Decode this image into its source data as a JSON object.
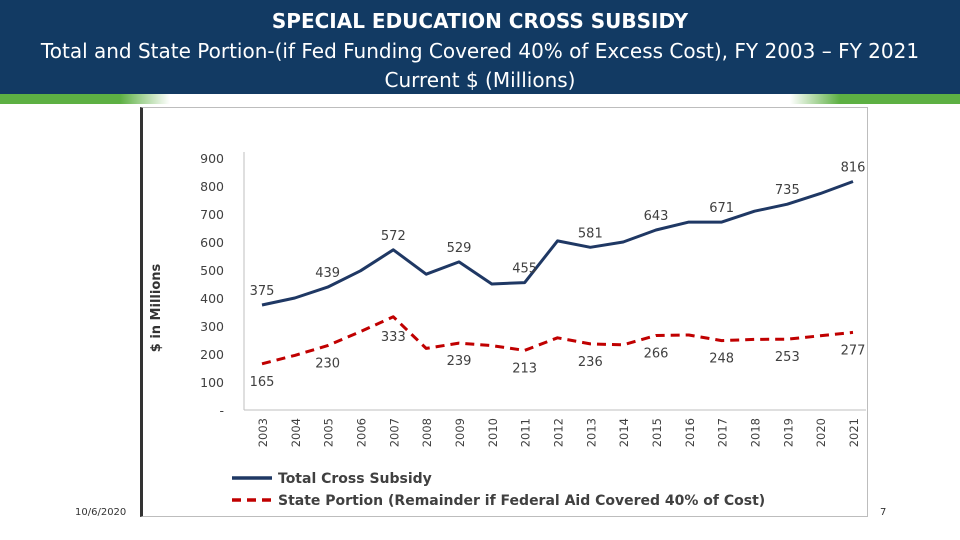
{
  "header": {
    "title": "SPECIAL EDUCATION CROSS SUBSIDY",
    "subtitle": "Total and State Portion-(if Fed Funding Covered 40% of Excess Cost),  FY 2003 – FY 2021",
    "subtitle2": "Current $ (Millions)"
  },
  "footer": {
    "date": "10/6/2020",
    "page": "7"
  },
  "colors": {
    "header_bg": "#123a63",
    "accent_green": "#5db043",
    "total_line": "#1f3864",
    "state_line": "#c00000"
  },
  "chart_data": {
    "type": "line",
    "title": "",
    "xlabel": "",
    "ylabel": "$ in Millions",
    "ylim": [
      0,
      900
    ],
    "y_ticks": [
      "-",
      "100",
      "200",
      "300",
      "400",
      "500",
      "600",
      "700",
      "800",
      "900"
    ],
    "y_tick_values": [
      0,
      100,
      200,
      300,
      400,
      500,
      600,
      700,
      800,
      900
    ],
    "categories": [
      "2003",
      "2004",
      "2005",
      "2006",
      "2007",
      "2008",
      "2009",
      "2010",
      "2011",
      "2012",
      "2013",
      "2014",
      "2015",
      "2016",
      "2017",
      "2018",
      "2019",
      "2020",
      "2021"
    ],
    "grid": false,
    "legend_position": "bottom",
    "series": [
      {
        "name": "Total Cross Subsidy",
        "color": "#1f3864",
        "style": "solid",
        "values": [
          375,
          400,
          439,
          497,
          572,
          485,
          529,
          450,
          455,
          604,
          581,
          600,
          643,
          671,
          671,
          710,
          735,
          773,
          816
        ],
        "labeled_points": [
          {
            "index": 0,
            "label": "375"
          },
          {
            "index": 2,
            "label": "439"
          },
          {
            "index": 4,
            "label": "572"
          },
          {
            "index": 6,
            "label": "529"
          },
          {
            "index": 8,
            "label": "455"
          },
          {
            "index": 10,
            "label": "581"
          },
          {
            "index": 12,
            "label": "643"
          },
          {
            "index": 14,
            "label": "671"
          },
          {
            "index": 16,
            "label": "735"
          },
          {
            "index": 18,
            "label": "816"
          }
        ]
      },
      {
        "name": "State Portion (Remainder if Federal Aid Covered 40% of Cost)",
        "color": "#c00000",
        "style": "dashed",
        "values": [
          165,
          195,
          230,
          280,
          333,
          220,
          239,
          230,
          213,
          258,
          236,
          233,
          266,
          268,
          248,
          252,
          253,
          265,
          277
        ],
        "labeled_points": [
          {
            "index": 0,
            "label": "165"
          },
          {
            "index": 2,
            "label": "230"
          },
          {
            "index": 4,
            "label": "333"
          },
          {
            "index": 6,
            "label": "239"
          },
          {
            "index": 8,
            "label": "213"
          },
          {
            "index": 10,
            "label": "236"
          },
          {
            "index": 12,
            "label": "266"
          },
          {
            "index": 14,
            "label": "248"
          },
          {
            "index": 16,
            "label": "253"
          },
          {
            "index": 18,
            "label": "277"
          }
        ]
      }
    ]
  }
}
